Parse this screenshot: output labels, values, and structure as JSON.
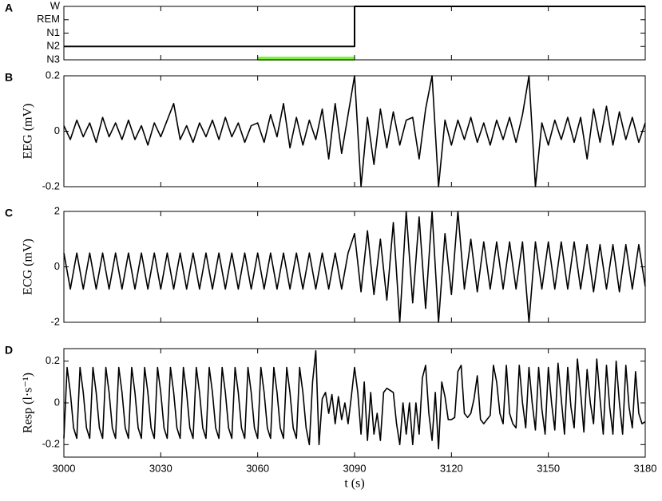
{
  "chart_data": [
    {
      "type": "step",
      "panel_label": "A",
      "color": "#000000",
      "x": [
        3000,
        3090,
        3090,
        3180
      ],
      "values": [
        1,
        1,
        4,
        4
      ],
      "highlight": {
        "x": [
          3060,
          3090
        ],
        "y": 0,
        "color": "#7cf23c"
      },
      "xlim": [
        3000,
        3180
      ],
      "xticks": [
        3000,
        3030,
        3060,
        3090,
        3120,
        3150,
        3180
      ],
      "xtick_labels": false,
      "ylim": [
        0,
        4
      ],
      "yticks": [
        {
          "value": 0,
          "label": "N3"
        },
        {
          "value": 1,
          "label": "N2"
        },
        {
          "value": 2,
          "label": "N1"
        },
        {
          "value": 3,
          "label": "REM"
        },
        {
          "value": 4,
          "label": "W"
        }
      ]
    },
    {
      "type": "line",
      "panel_label": "B",
      "ylabel": "EEG (mV)",
      "color": "#000000",
      "x": [
        3000,
        3002,
        3004,
        3006,
        3008,
        3010,
        3012,
        3014,
        3016,
        3018,
        3020,
        3022,
        3024,
        3026,
        3028,
        3030,
        3032,
        3034,
        3036,
        3038,
        3040,
        3042,
        3044,
        3046,
        3048,
        3050,
        3052,
        3054,
        3056,
        3058,
        3060,
        3062,
        3064,
        3066,
        3068,
        3070,
        3072,
        3074,
        3076,
        3078,
        3080,
        3082,
        3084,
        3086,
        3088,
        3090,
        3092,
        3094,
        3096,
        3098,
        3100,
        3102,
        3104,
        3106,
        3108,
        3110,
        3112,
        3114,
        3116,
        3118,
        3120,
        3122,
        3124,
        3126,
        3128,
        3130,
        3132,
        3134,
        3136,
        3138,
        3140,
        3142,
        3144,
        3146,
        3148,
        3150,
        3152,
        3154,
        3156,
        3158,
        3160,
        3162,
        3164,
        3166,
        3168,
        3170,
        3172,
        3174,
        3176,
        3178,
        3180
      ],
      "values": [
        0.02,
        -0.03,
        0.04,
        -0.02,
        0.03,
        -0.04,
        0.05,
        -0.02,
        0.03,
        -0.03,
        0.04,
        -0.03,
        0.02,
        -0.05,
        0.03,
        -0.02,
        0.04,
        0.1,
        -0.03,
        0.02,
        -0.04,
        0.03,
        -0.02,
        0.04,
        -0.03,
        0.05,
        -0.02,
        0.03,
        -0.04,
        0.02,
        0.03,
        -0.04,
        0.06,
        -0.02,
        0.1,
        -0.06,
        0.05,
        -0.05,
        0.04,
        -0.03,
        0.08,
        -0.1,
        0.1,
        -0.08,
        0.06,
        0.2,
        -0.2,
        0.05,
        -0.12,
        0.08,
        -0.06,
        0.07,
        -0.05,
        0.04,
        0.05,
        -0.1,
        0.08,
        0.2,
        -0.2,
        0.04,
        -0.05,
        0.04,
        -0.03,
        0.05,
        -0.04,
        0.03,
        -0.05,
        0.04,
        -0.03,
        0.05,
        -0.04,
        0.06,
        0.2,
        -0.2,
        0.03,
        -0.05,
        0.04,
        -0.03,
        0.05,
        -0.04,
        0.05,
        -0.1,
        0.08,
        -0.04,
        0.09,
        -0.05,
        0.07,
        -0.03,
        0.05,
        -0.04,
        0.03
      ],
      "xlim": [
        3000,
        3180
      ],
      "xticks": [
        3000,
        3030,
        3060,
        3090,
        3120,
        3150,
        3180
      ],
      "xtick_labels": false,
      "ylim": [
        -0.2,
        0.2
      ],
      "yticks": [
        -0.2,
        0,
        0.2
      ]
    },
    {
      "type": "line",
      "panel_label": "C",
      "ylabel": "ECG (mV)",
      "color": "#000000",
      "x": [
        3000,
        3002,
        3004,
        3006,
        3008,
        3010,
        3012,
        3014,
        3016,
        3018,
        3020,
        3022,
        3024,
        3026,
        3028,
        3030,
        3032,
        3034,
        3036,
        3038,
        3040,
        3042,
        3044,
        3046,
        3048,
        3050,
        3052,
        3054,
        3056,
        3058,
        3060,
        3062,
        3064,
        3066,
        3068,
        3070,
        3072,
        3074,
        3076,
        3078,
        3080,
        3082,
        3084,
        3086,
        3088,
        3090,
        3092,
        3094,
        3096,
        3098,
        3100,
        3102,
        3104,
        3106,
        3108,
        3110,
        3112,
        3114,
        3116,
        3118,
        3120,
        3122,
        3124,
        3126,
        3128,
        3130,
        3132,
        3134,
        3136,
        3138,
        3140,
        3142,
        3144,
        3146,
        3148,
        3150,
        3152,
        3154,
        3156,
        3158,
        3160,
        3162,
        3164,
        3166,
        3168,
        3170,
        3172,
        3174,
        3176,
        3178,
        3180
      ],
      "values": [
        0.5,
        -0.8,
        0.5,
        -0.8,
        0.5,
        -0.8,
        0.5,
        -0.8,
        0.5,
        -0.8,
        0.5,
        -0.8,
        0.5,
        -0.8,
        0.5,
        -0.8,
        0.5,
        -0.8,
        0.5,
        -0.8,
        0.5,
        -0.8,
        0.5,
        -0.8,
        0.5,
        -0.8,
        0.5,
        -0.8,
        0.5,
        -0.8,
        0.5,
        -0.8,
        0.5,
        -0.8,
        0.5,
        -0.8,
        0.5,
        -0.8,
        0.5,
        -0.8,
        0.5,
        -0.8,
        0.5,
        -0.8,
        0.5,
        1.2,
        -0.9,
        1.3,
        -1.0,
        1.0,
        -1.2,
        1.6,
        -2.0,
        2.0,
        -1.3,
        1.8,
        -1.5,
        2.0,
        -2.0,
        1.2,
        -1.0,
        2.0,
        -0.8,
        1.0,
        -0.9,
        0.9,
        -0.8,
        0.9,
        -0.8,
        0.9,
        -0.8,
        0.9,
        -2.0,
        0.9,
        -0.8,
        0.9,
        -0.8,
        0.9,
        -0.8,
        0.9,
        -0.8,
        0.8,
        -0.9,
        0.8,
        -0.8,
        0.8,
        -0.9,
        0.8,
        -0.8,
        0.8,
        -0.7
      ],
      "xlim": [
        3000,
        3180
      ],
      "xticks": [
        3000,
        3030,
        3060,
        3090,
        3120,
        3150,
        3180
      ],
      "xtick_labels": false,
      "ylim": [
        -2,
        2
      ],
      "yticks": [
        -2,
        0,
        2
      ]
    },
    {
      "type": "line",
      "panel_label": "D",
      "ylabel": "Resp (l·s⁻¹)",
      "xlabel": "t (s)",
      "color": "#000000",
      "x": [
        3000,
        3001,
        3002,
        3003,
        3004,
        3005,
        3006,
        3007,
        3008,
        3009,
        3010,
        3011,
        3012,
        3013,
        3014,
        3015,
        3016,
        3017,
        3018,
        3019,
        3020,
        3021,
        3022,
        3023,
        3024,
        3025,
        3026,
        3027,
        3028,
        3029,
        3030,
        3031,
        3032,
        3033,
        3034,
        3035,
        3036,
        3037,
        3038,
        3039,
        3040,
        3041,
        3042,
        3043,
        3044,
        3045,
        3046,
        3047,
        3048,
        3049,
        3050,
        3051,
        3052,
        3053,
        3054,
        3055,
        3056,
        3057,
        3058,
        3059,
        3060,
        3061,
        3062,
        3063,
        3064,
        3065,
        3066,
        3067,
        3068,
        3069,
        3070,
        3071,
        3072,
        3073,
        3074,
        3075,
        3076,
        3077,
        3078,
        3079,
        3080,
        3081,
        3082,
        3083,
        3084,
        3085,
        3086,
        3087,
        3088,
        3089,
        3090,
        3091,
        3092,
        3093,
        3094,
        3095,
        3096,
        3097,
        3098,
        3099,
        3100,
        3101,
        3102,
        3103,
        3104,
        3105,
        3106,
        3107,
        3108,
        3109,
        3110,
        3111,
        3112,
        3113,
        3114,
        3115,
        3116,
        3117,
        3118,
        3119,
        3120,
        3121,
        3122,
        3123,
        3124,
        3125,
        3126,
        3127,
        3128,
        3129,
        3130,
        3131,
        3132,
        3133,
        3134,
        3135,
        3136,
        3137,
        3138,
        3139,
        3140,
        3141,
        3142,
        3143,
        3144,
        3145,
        3146,
        3147,
        3148,
        3149,
        3150,
        3151,
        3152,
        3153,
        3154,
        3155,
        3156,
        3157,
        3158,
        3159,
        3160,
        3161,
        3162,
        3163,
        3164,
        3165,
        3166,
        3167,
        3168,
        3169,
        3170,
        3171,
        3172,
        3173,
        3174,
        3175,
        3176,
        3177,
        3178,
        3179,
        3180
      ],
      "values": [
        -0.17,
        0.17,
        0.05,
        -0.12,
        -0.17,
        0.17,
        0.05,
        -0.12,
        -0.17,
        0.17,
        0.05,
        -0.12,
        -0.17,
        0.17,
        0.05,
        -0.12,
        -0.17,
        0.17,
        0.05,
        -0.12,
        -0.17,
        0.17,
        0.05,
        -0.12,
        -0.17,
        0.17,
        0.05,
        -0.12,
        -0.17,
        0.17,
        0.05,
        -0.12,
        -0.17,
        0.17,
        0.05,
        -0.12,
        -0.17,
        0.17,
        0.05,
        -0.12,
        -0.17,
        0.17,
        0.05,
        -0.12,
        -0.17,
        0.17,
        0.05,
        -0.12,
        -0.17,
        0.17,
        0.05,
        -0.12,
        -0.17,
        0.17,
        0.05,
        -0.12,
        -0.17,
        0.17,
        0.05,
        -0.12,
        -0.17,
        0.17,
        0.05,
        -0.12,
        -0.17,
        0.17,
        0.05,
        -0.12,
        -0.17,
        0.17,
        0.05,
        -0.12,
        -0.17,
        0.17,
        0.05,
        -0.12,
        -0.2,
        0.1,
        0.25,
        -0.2,
        0.02,
        0.05,
        -0.05,
        0.04,
        -0.1,
        0.03,
        -0.08,
        0.0,
        -0.1,
        0.03,
        0.17,
        0.05,
        -0.15,
        0.1,
        -0.18,
        0.05,
        -0.15,
        -0.05,
        -0.18,
        0.05,
        0.07,
        0.06,
        0.05,
        -0.1,
        -0.2,
        0.0,
        -0.15,
        0.0,
        -0.2,
        0.0,
        -0.15,
        0.12,
        0.18,
        -0.05,
        -0.18,
        0.05,
        -0.22,
        0.1,
        0.03,
        -0.08,
        -0.08,
        -0.07,
        0.15,
        0.18,
        -0.05,
        -0.07,
        -0.05,
        0.02,
        0.13,
        -0.08,
        -0.1,
        -0.08,
        -0.06,
        0.18,
        0.1,
        -0.05,
        -0.1,
        0.18,
        -0.05,
        -0.1,
        -0.12,
        0.18,
        0.0,
        -0.12,
        0.17,
        0.0,
        -0.13,
        0.17,
        -0.03,
        -0.15,
        0.17,
        0.0,
        -0.13,
        0.19,
        0.02,
        -0.15,
        0.17,
        -0.02,
        -0.12,
        0.21,
        0.05,
        -0.14,
        0.16,
        0.0,
        -0.1,
        0.21,
        0.02,
        -0.15,
        0.18,
        -0.02,
        -0.15,
        0.2,
        0.0,
        -0.15,
        0.18,
        -0.02,
        -0.12,
        0.15,
        -0.05,
        -0.1,
        -0.09
      ],
      "xlim": [
        3000,
        3180
      ],
      "xticks": [
        3000,
        3030,
        3060,
        3090,
        3120,
        3150,
        3180
      ],
      "xtick_labels": true,
      "ylim": [
        -0.26,
        0.26
      ],
      "yticks": [
        -0.2,
        0,
        0.2
      ]
    }
  ]
}
